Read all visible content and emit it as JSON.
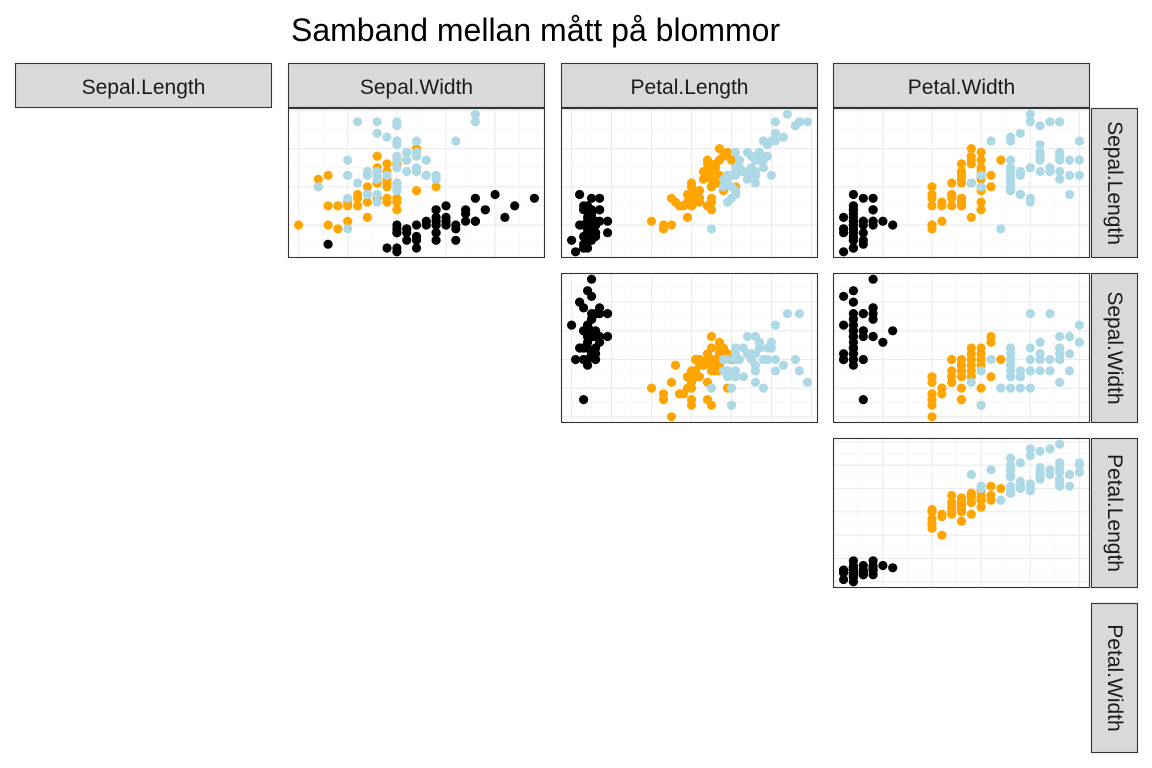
{
  "chart_data": {
    "type": "scatter",
    "title": "Samband mellan mått på blommor",
    "variables": [
      "Sepal.Length",
      "Sepal.Width",
      "Petal.Length",
      "Petal.Width"
    ],
    "layout": "upper-triangle-pairs",
    "grid": true,
    "legend": "none",
    "colors": [
      "#000000",
      "#FFA500",
      "#ADD8E6"
    ],
    "panels": [
      {
        "x": "Sepal.Width",
        "y": "Sepal.Length"
      },
      {
        "x": "Petal.Length",
        "y": "Sepal.Length"
      },
      {
        "x": "Petal.Width",
        "y": "Sepal.Length"
      },
      {
        "x": "Petal.Length",
        "y": "Sepal.Width"
      },
      {
        "x": "Petal.Width",
        "y": "Sepal.Width"
      },
      {
        "x": "Petal.Width",
        "y": "Petal.Length"
      }
    ],
    "ranges": {
      "Sepal.Length": [
        4.3,
        7.9
      ],
      "Sepal.Width": [
        2.0,
        4.4
      ],
      "Petal.Length": [
        1.0,
        6.9
      ],
      "Petal.Width": [
        0.1,
        2.5
      ]
    },
    "groups": [
      {
        "color": "#000000",
        "points": [
          [
            5.1,
            3.5,
            1.4,
            0.2
          ],
          [
            4.9,
            3.0,
            1.4,
            0.2
          ],
          [
            4.7,
            3.2,
            1.3,
            0.2
          ],
          [
            4.6,
            3.1,
            1.5,
            0.2
          ],
          [
            5.0,
            3.6,
            1.4,
            0.2
          ],
          [
            5.4,
            3.9,
            1.7,
            0.4
          ],
          [
            4.6,
            3.4,
            1.4,
            0.3
          ],
          [
            5.0,
            3.4,
            1.5,
            0.2
          ],
          [
            4.4,
            2.9,
            1.4,
            0.2
          ],
          [
            4.9,
            3.1,
            1.5,
            0.1
          ],
          [
            5.4,
            3.7,
            1.5,
            0.2
          ],
          [
            4.8,
            3.4,
            1.6,
            0.2
          ],
          [
            4.8,
            3.0,
            1.4,
            0.1
          ],
          [
            4.3,
            3.0,
            1.1,
            0.1
          ],
          [
            5.8,
            4.0,
            1.2,
            0.2
          ],
          [
            5.7,
            4.4,
            1.5,
            0.4
          ],
          [
            5.4,
            3.9,
            1.3,
            0.4
          ],
          [
            5.1,
            3.5,
            1.4,
            0.3
          ],
          [
            5.7,
            3.8,
            1.7,
            0.3
          ],
          [
            5.1,
            3.8,
            1.5,
            0.3
          ],
          [
            5.4,
            3.4,
            1.7,
            0.2
          ],
          [
            5.1,
            3.7,
            1.5,
            0.4
          ],
          [
            4.6,
            3.6,
            1.0,
            0.2
          ],
          [
            5.1,
            3.3,
            1.7,
            0.5
          ],
          [
            4.8,
            3.4,
            1.9,
            0.2
          ],
          [
            5.0,
            3.0,
            1.6,
            0.2
          ],
          [
            5.0,
            3.4,
            1.6,
            0.4
          ],
          [
            5.2,
            3.5,
            1.5,
            0.2
          ],
          [
            5.2,
            3.4,
            1.4,
            0.2
          ],
          [
            4.7,
            3.2,
            1.6,
            0.2
          ],
          [
            4.8,
            3.1,
            1.6,
            0.2
          ],
          [
            5.4,
            3.4,
            1.5,
            0.4
          ],
          [
            5.2,
            4.1,
            1.5,
            0.1
          ],
          [
            5.5,
            4.2,
            1.4,
            0.2
          ],
          [
            4.9,
            3.1,
            1.5,
            0.2
          ],
          [
            5.0,
            3.2,
            1.2,
            0.2
          ],
          [
            5.5,
            3.5,
            1.3,
            0.2
          ],
          [
            4.9,
            3.6,
            1.4,
            0.1
          ],
          [
            4.4,
            3.0,
            1.3,
            0.2
          ],
          [
            5.1,
            3.4,
            1.5,
            0.2
          ],
          [
            5.0,
            3.5,
            1.3,
            0.3
          ],
          [
            4.5,
            2.3,
            1.3,
            0.3
          ],
          [
            4.4,
            3.2,
            1.3,
            0.2
          ],
          [
            5.0,
            3.5,
            1.6,
            0.6
          ],
          [
            5.1,
            3.8,
            1.9,
            0.4
          ],
          [
            4.8,
            3.0,
            1.4,
            0.3
          ],
          [
            5.1,
            3.8,
            1.6,
            0.2
          ],
          [
            4.6,
            3.2,
            1.4,
            0.2
          ],
          [
            5.3,
            3.7,
            1.5,
            0.2
          ],
          [
            5.0,
            3.3,
            1.4,
            0.2
          ]
        ]
      },
      {
        "color": "#FFA500",
        "points": [
          [
            7.0,
            3.2,
            4.7,
            1.4
          ],
          [
            6.4,
            3.2,
            4.5,
            1.5
          ],
          [
            6.9,
            3.1,
            4.9,
            1.5
          ],
          [
            5.5,
            2.3,
            4.0,
            1.3
          ],
          [
            6.5,
            2.8,
            4.6,
            1.5
          ],
          [
            5.7,
            2.8,
            4.5,
            1.3
          ],
          [
            6.3,
            3.3,
            4.7,
            1.6
          ],
          [
            4.9,
            2.4,
            3.3,
            1.0
          ],
          [
            6.6,
            2.9,
            4.6,
            1.3
          ],
          [
            5.2,
            2.7,
            3.9,
            1.4
          ],
          [
            5.0,
            2.0,
            3.5,
            1.0
          ],
          [
            5.9,
            3.0,
            4.2,
            1.5
          ],
          [
            6.0,
            2.2,
            4.0,
            1.0
          ],
          [
            6.1,
            2.9,
            4.7,
            1.4
          ],
          [
            5.6,
            2.9,
            3.6,
            1.3
          ],
          [
            6.7,
            3.1,
            4.4,
            1.4
          ],
          [
            5.6,
            3.0,
            4.5,
            1.5
          ],
          [
            5.8,
            2.7,
            4.1,
            1.0
          ],
          [
            6.2,
            2.2,
            4.5,
            1.5
          ],
          [
            5.6,
            2.5,
            3.9,
            1.1
          ],
          [
            5.9,
            3.2,
            4.8,
            1.8
          ],
          [
            6.1,
            2.8,
            4.0,
            1.3
          ],
          [
            6.3,
            2.5,
            4.9,
            1.5
          ],
          [
            6.1,
            2.8,
            4.7,
            1.2
          ],
          [
            6.4,
            2.9,
            4.3,
            1.3
          ],
          [
            6.6,
            3.0,
            4.4,
            1.4
          ],
          [
            6.8,
            2.8,
            4.8,
            1.4
          ],
          [
            6.7,
            3.0,
            5.0,
            1.7
          ],
          [
            6.0,
            2.9,
            4.5,
            1.5
          ],
          [
            5.7,
            2.6,
            3.5,
            1.0
          ],
          [
            5.5,
            2.4,
            3.8,
            1.1
          ],
          [
            5.5,
            2.4,
            3.7,
            1.0
          ],
          [
            5.8,
            2.7,
            3.9,
            1.2
          ],
          [
            6.0,
            2.7,
            5.1,
            1.6
          ],
          [
            5.4,
            3.0,
            4.5,
            1.5
          ],
          [
            6.0,
            3.4,
            4.5,
            1.6
          ],
          [
            6.7,
            3.1,
            4.7,
            1.5
          ],
          [
            6.3,
            2.3,
            4.4,
            1.3
          ],
          [
            5.6,
            3.0,
            4.1,
            1.3
          ],
          [
            5.5,
            2.5,
            4.0,
            1.3
          ],
          [
            5.5,
            2.6,
            4.4,
            1.2
          ],
          [
            6.1,
            3.0,
            4.6,
            1.4
          ],
          [
            5.8,
            2.6,
            4.0,
            1.2
          ],
          [
            5.0,
            2.3,
            3.3,
            1.0
          ],
          [
            5.6,
            2.7,
            4.2,
            1.3
          ],
          [
            5.7,
            3.0,
            4.2,
            1.2
          ],
          [
            5.7,
            2.9,
            4.2,
            1.3
          ],
          [
            6.2,
            2.9,
            4.3,
            1.3
          ],
          [
            5.1,
            2.5,
            3.0,
            1.1
          ],
          [
            5.7,
            2.8,
            4.1,
            1.3
          ]
        ]
      },
      {
        "color": "#ADD8E6",
        "points": [
          [
            6.3,
            3.3,
            6.0,
            2.5
          ],
          [
            5.8,
            2.7,
            5.1,
            1.9
          ],
          [
            7.1,
            3.0,
            5.9,
            2.1
          ],
          [
            6.3,
            2.9,
            5.6,
            1.8
          ],
          [
            6.5,
            3.0,
            5.8,
            2.2
          ],
          [
            7.6,
            3.0,
            6.6,
            2.1
          ],
          [
            4.9,
            2.5,
            4.5,
            1.7
          ],
          [
            7.3,
            2.9,
            6.3,
            1.8
          ],
          [
            6.7,
            2.5,
            5.8,
            1.8
          ],
          [
            7.2,
            3.6,
            6.1,
            2.5
          ],
          [
            6.5,
            3.2,
            5.1,
            2.0
          ],
          [
            6.4,
            2.7,
            5.3,
            1.9
          ],
          [
            6.8,
            3.0,
            5.5,
            2.1
          ],
          [
            5.7,
            2.5,
            5.0,
            2.0
          ],
          [
            5.8,
            2.8,
            5.1,
            2.4
          ],
          [
            6.4,
            3.2,
            5.3,
            2.3
          ],
          [
            6.5,
            3.0,
            5.5,
            1.8
          ],
          [
            7.7,
            3.8,
            6.7,
            2.2
          ],
          [
            7.7,
            2.6,
            6.9,
            2.3
          ],
          [
            6.0,
            2.2,
            5.0,
            1.5
          ],
          [
            6.9,
            3.2,
            5.7,
            2.3
          ],
          [
            5.6,
            2.8,
            4.9,
            2.0
          ],
          [
            7.7,
            2.8,
            6.7,
            2.0
          ],
          [
            6.3,
            2.7,
            4.9,
            1.8
          ],
          [
            6.7,
            3.3,
            5.7,
            2.1
          ],
          [
            7.2,
            3.2,
            6.0,
            1.8
          ],
          [
            6.2,
            2.8,
            4.8,
            1.8
          ],
          [
            6.1,
            3.0,
            4.9,
            1.8
          ],
          [
            6.4,
            2.8,
            5.6,
            2.1
          ],
          [
            7.2,
            3.0,
            5.8,
            1.6
          ],
          [
            7.4,
            2.8,
            6.1,
            1.9
          ],
          [
            7.9,
            3.8,
            6.4,
            2.0
          ],
          [
            6.4,
            2.8,
            5.6,
            2.2
          ],
          [
            6.3,
            2.8,
            5.1,
            1.5
          ],
          [
            6.1,
            2.6,
            5.6,
            1.4
          ],
          [
            7.7,
            3.0,
            6.1,
            2.3
          ],
          [
            6.3,
            3.4,
            5.6,
            2.4
          ],
          [
            6.4,
            3.1,
            5.5,
            1.8
          ],
          [
            6.0,
            3.0,
            4.8,
            1.8
          ],
          [
            6.9,
            3.1,
            5.4,
            2.1
          ],
          [
            6.7,
            3.1,
            5.6,
            2.4
          ],
          [
            6.9,
            3.1,
            5.1,
            2.3
          ],
          [
            5.8,
            2.7,
            5.1,
            1.9
          ],
          [
            6.8,
            3.2,
            5.9,
            2.3
          ],
          [
            6.7,
            3.3,
            5.7,
            2.5
          ],
          [
            6.7,
            3.0,
            5.2,
            2.3
          ],
          [
            6.3,
            2.5,
            5.0,
            1.9
          ],
          [
            6.5,
            3.0,
            5.2,
            2.0
          ],
          [
            6.2,
            3.4,
            5.4,
            2.3
          ],
          [
            5.9,
            3.0,
            5.1,
            1.8
          ]
        ]
      }
    ]
  }
}
